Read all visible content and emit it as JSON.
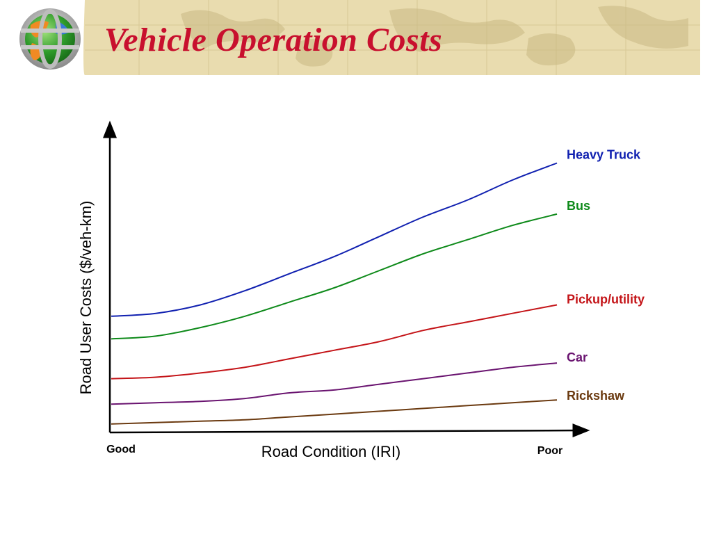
{
  "slide": {
    "title": "Vehicle Operation Costs"
  },
  "theme": {
    "title_color": "#c8102e",
    "banner_color": "#e9dcaf",
    "axis_color": "#000000"
  },
  "chart_data": {
    "type": "line",
    "xlabel": "Road Condition (IRI)",
    "ylabel": "Road User Costs ($/veh-km)",
    "x_start_label": "Good",
    "x_end_label": "Poor",
    "x": [
      0,
      0.1,
      0.2,
      0.3,
      0.4,
      0.5,
      0.6,
      0.7,
      0.8,
      0.9,
      1.0
    ],
    "xlim": [
      0,
      1.05
    ],
    "ylim": [
      0,
      1.0
    ],
    "grid": false,
    "legend": "inline labels at right end of each line",
    "series": [
      {
        "name": "Heavy Truck",
        "color": "#1020b0",
        "values": [
          0.4,
          0.41,
          0.44,
          0.49,
          0.55,
          0.61,
          0.68,
          0.75,
          0.81,
          0.88,
          0.94
        ]
      },
      {
        "name": "Bus",
        "color": "#0e8a1a",
        "values": [
          0.32,
          0.33,
          0.36,
          0.4,
          0.45,
          0.5,
          0.56,
          0.62,
          0.67,
          0.72,
          0.76
        ]
      },
      {
        "name": "Pickup/utility",
        "color": "#c41418",
        "values": [
          0.18,
          0.185,
          0.2,
          0.22,
          0.25,
          0.28,
          0.31,
          0.35,
          0.38,
          0.41,
          0.44
        ]
      },
      {
        "name": "Car",
        "color": "#6a1470",
        "values": [
          0.09,
          0.095,
          0.1,
          0.11,
          0.13,
          0.14,
          0.16,
          0.18,
          0.2,
          0.22,
          0.235
        ]
      },
      {
        "name": "Rickshaw",
        "color": "#6b3a10",
        "values": [
          0.02,
          0.025,
          0.03,
          0.035,
          0.045,
          0.055,
          0.065,
          0.075,
          0.085,
          0.095,
          0.105
        ]
      }
    ]
  }
}
